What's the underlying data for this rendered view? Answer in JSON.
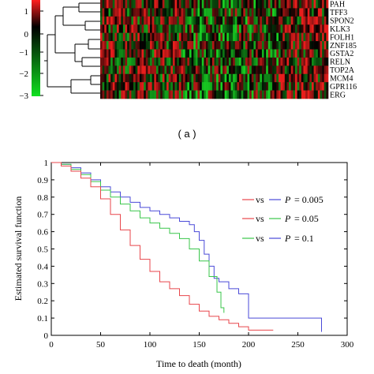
{
  "panel_a": {
    "label": "( a )",
    "colorbar_ticks": [
      "1",
      "0",
      "−1",
      "−2",
      "−3"
    ],
    "genes": [
      "PAH",
      "TFF3",
      "SPON2",
      "KLK3",
      "FOLH1",
      "ZNF185",
      "GSTA2",
      "RELN",
      "TOP2A",
      "MCM4",
      "GPR116",
      "ERG"
    ],
    "colors": {
      "high": "#e8231c",
      "low": "#18c423",
      "mid": "#000000"
    }
  },
  "chart_data": [
    {
      "type": "heatmap",
      "rows": [
        "PAH",
        "TFF3",
        "SPON2",
        "KLK3",
        "FOLH1",
        "ZNF185",
        "GSTA2",
        "RELN",
        "TOP2A",
        "MCM4",
        "GPR116",
        "ERG"
      ],
      "color_scale": {
        "min": -3,
        "max": 1,
        "low_color": "#18c423",
        "mid_color": "#000000",
        "high_color": "#e8231c"
      }
    },
    {
      "type": "line",
      "xlabel": "Time to death (month)",
      "ylabel": "Estimated survival function",
      "xlim": [
        0,
        300
      ],
      "ylim": [
        0,
        1
      ],
      "xticks": [
        "0",
        "50",
        "100",
        "150",
        "200",
        "250",
        "300"
      ],
      "yticks": [
        "0",
        "0.1",
        "0.2",
        "0.3",
        "0.4",
        "0.5",
        "0.6",
        "0.7",
        "0.8",
        "0.9",
        "1"
      ],
      "legend": [
        {
          "vs": "vs",
          "p_label": "P",
          "p_value": "= 0.005",
          "colors": [
            "#e8464b",
            "#4a4ad8"
          ]
        },
        {
          "vs": "vs",
          "p_label": "P",
          "p_value": "= 0.05",
          "colors": [
            "#e8464b",
            "#39c64a"
          ]
        },
        {
          "vs": "vs",
          "p_label": "P",
          "p_value": "= 0.1",
          "colors": [
            "#39c64a",
            "#4a4ad8"
          ]
        }
      ],
      "series": [
        {
          "color": "#4a4ad8",
          "points": [
            [
              0,
              1
            ],
            [
              10,
              0.99
            ],
            [
              20,
              0.97
            ],
            [
              30,
              0.94
            ],
            [
              40,
              0.9
            ],
            [
              50,
              0.86
            ],
            [
              60,
              0.83
            ],
            [
              70,
              0.8
            ],
            [
              80,
              0.77
            ],
            [
              90,
              0.74
            ],
            [
              100,
              0.72
            ],
            [
              110,
              0.7
            ],
            [
              120,
              0.68
            ],
            [
              130,
              0.66
            ],
            [
              140,
              0.64
            ],
            [
              145,
              0.6
            ],
            [
              150,
              0.55
            ],
            [
              155,
              0.47
            ],
            [
              160,
              0.4
            ],
            [
              165,
              0.33
            ],
            [
              170,
              0.31
            ],
            [
              175,
              0.31
            ],
            [
              180,
              0.27
            ],
            [
              190,
              0.24
            ],
            [
              200,
              0.1
            ],
            [
              210,
              0.1
            ],
            [
              220,
              0.1
            ],
            [
              240,
              0.1
            ],
            [
              260,
              0.1
            ],
            [
              273,
              0.1
            ],
            [
              274,
              0.02
            ]
          ]
        },
        {
          "color": "#39c64a",
          "points": [
            [
              0,
              1
            ],
            [
              10,
              0.99
            ],
            [
              20,
              0.96
            ],
            [
              30,
              0.93
            ],
            [
              40,
              0.89
            ],
            [
              50,
              0.84
            ],
            [
              60,
              0.8
            ],
            [
              70,
              0.76
            ],
            [
              80,
              0.72
            ],
            [
              90,
              0.68
            ],
            [
              100,
              0.65
            ],
            [
              110,
              0.62
            ],
            [
              120,
              0.59
            ],
            [
              130,
              0.56
            ],
            [
              140,
              0.5
            ],
            [
              150,
              0.43
            ],
            [
              160,
              0.34
            ],
            [
              168,
              0.25
            ],
            [
              172,
              0.16
            ],
            [
              175,
              0.13
            ]
          ]
        },
        {
          "color": "#e8464b",
          "points": [
            [
              0,
              1
            ],
            [
              10,
              0.98
            ],
            [
              20,
              0.95
            ],
            [
              30,
              0.91
            ],
            [
              40,
              0.86
            ],
            [
              50,
              0.79
            ],
            [
              60,
              0.7
            ],
            [
              70,
              0.61
            ],
            [
              80,
              0.52
            ],
            [
              90,
              0.44
            ],
            [
              100,
              0.37
            ],
            [
              110,
              0.31
            ],
            [
              120,
              0.27
            ],
            [
              130,
              0.23
            ],
            [
              140,
              0.18
            ],
            [
              150,
              0.14
            ],
            [
              160,
              0.11
            ],
            [
              170,
              0.09
            ],
            [
              180,
              0.07
            ],
            [
              190,
              0.05
            ],
            [
              200,
              0.03
            ],
            [
              212,
              0.03
            ],
            [
              225,
              0.03
            ]
          ]
        }
      ]
    }
  ]
}
